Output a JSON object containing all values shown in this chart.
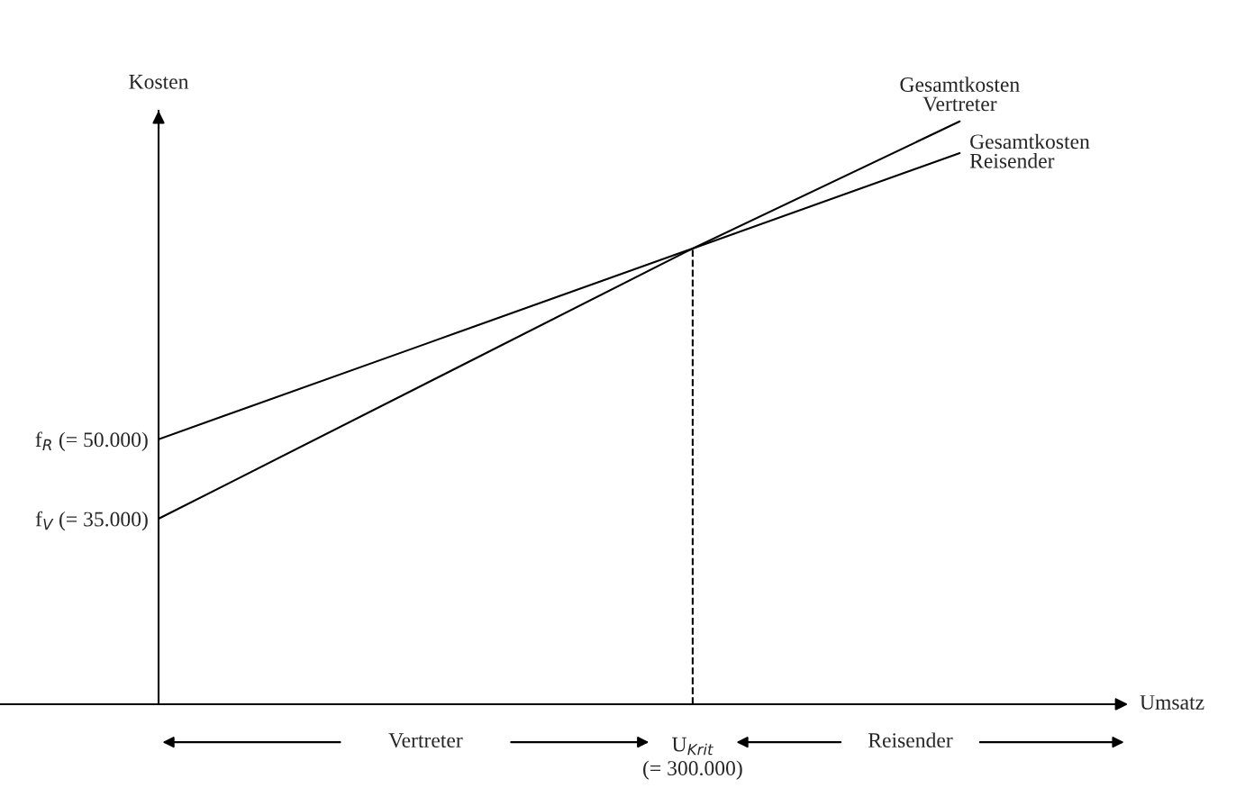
{
  "chart_data": {
    "type": "line",
    "xlabel": "Umsatz",
    "ylabel": "Kosten",
    "marker": "none",
    "line_style": "solid",
    "ylim": [
      0,
      112000
    ],
    "categories": [
      null,
      null,
      "U$_{Krit}$\n(= 300.000)",
      null
    ],
    "yticks": [
      {
        "value": 35000,
        "label": "f$_{V}$ (= 35.000)"
      },
      {
        "value": 50000,
        "label": "f$_{R}$ (= 50.000)"
      }
    ],
    "series": [
      {
        "name": "Gesamtkosten\nVertreter",
        "color": "#000000",
        "values": [
          35000,
          60500,
          86000,
          110000
        ]
      },
      {
        "name": "Gesamtkosten\nReisender",
        "color": "#000000",
        "values": [
          50000,
          68000,
          86000,
          104000
        ]
      }
    ],
    "ref_lines": [
      {
        "axis": "x",
        "value": "U$_{Krit}$\n(= 300.000)",
        "line_style": "dashed"
      }
    ],
    "annotations": [
      "Vertreter",
      "Reisender"
    ]
  }
}
